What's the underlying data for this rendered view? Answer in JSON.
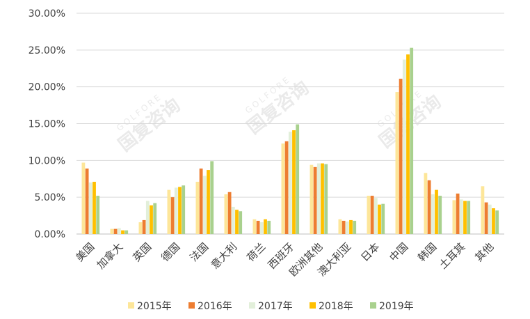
{
  "chart_data": {
    "type": "bar",
    "categories": [
      "美国",
      "加拿大",
      "英国",
      "德国",
      "法国",
      "意大利",
      "荷兰",
      "西班牙",
      "欧洲其他",
      "澳大利亚",
      "日本",
      "中国",
      "韩国",
      "土耳其",
      "其他"
    ],
    "series": [
      {
        "name": "2015年",
        "color": "#fde699",
        "values": [
          9.7,
          0.7,
          1.6,
          6.0,
          7.1,
          5.4,
          2.0,
          12.3,
          9.4,
          2.0,
          5.2,
          19.3,
          8.3,
          4.6,
          6.5
        ]
      },
      {
        "name": "2016年",
        "color": "#ed7d31",
        "values": [
          8.9,
          0.7,
          1.9,
          5.0,
          8.9,
          5.7,
          1.8,
          12.6,
          9.1,
          1.8,
          5.2,
          21.1,
          7.3,
          5.5,
          4.3
        ]
      },
      {
        "name": "2017年",
        "color": "#e2efda",
        "values": [
          7.0,
          0.8,
          4.5,
          6.3,
          7.9,
          3.7,
          1.6,
          13.9,
          9.6,
          1.7,
          4.9,
          23.7,
          5.4,
          4.7,
          4.0
        ]
      },
      {
        "name": "2018年",
        "color": "#ffc000",
        "values": [
          7.1,
          0.5,
          3.9,
          6.4,
          8.7,
          3.3,
          2.0,
          14.1,
          9.6,
          1.9,
          4.0,
          24.4,
          6.0,
          4.5,
          3.5
        ]
      },
      {
        "name": "2019年",
        "color": "#a9d18e",
        "values": [
          5.2,
          0.5,
          4.2,
          6.6,
          9.9,
          3.1,
          1.8,
          14.9,
          9.5,
          1.8,
          4.1,
          25.3,
          5.2,
          4.5,
          3.2
        ]
      }
    ],
    "y_ticks": [
      "0.00%",
      "5.00%",
      "10.00%",
      "15.00%",
      "20.00%",
      "25.00%",
      "30.00%"
    ],
    "ylim": [
      0,
      30
    ],
    "grid": true,
    "legend_position": "bottom"
  },
  "watermark": {
    "cn": "国复咨询",
    "en": "GOLFORE"
  }
}
